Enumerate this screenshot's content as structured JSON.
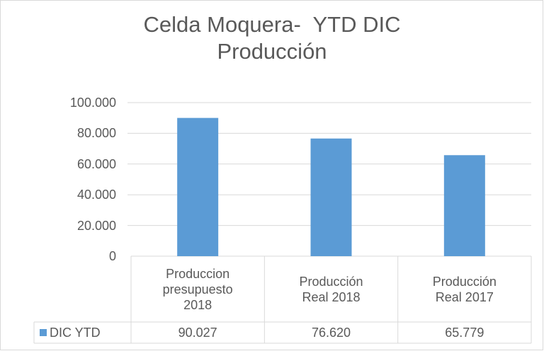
{
  "chart_data": {
    "type": "bar",
    "title": "Celda Moquera-  YTD DIC Producción",
    "categories": [
      "Produccion presupuesto 2018",
      "Producción Real 2018",
      "Producción Real 2017"
    ],
    "series": [
      {
        "name": "DIC YTD",
        "color": "#5b9bd5",
        "values": [
          90027,
          76620,
          65779
        ],
        "value_labels": [
          "90.027",
          "76.620",
          "65.779"
        ]
      }
    ],
    "ylim": [
      0,
      100000
    ],
    "yticks": [
      0,
      {
        "value": 20000,
        "label": "20.000"
      },
      {
        "value": 40000,
        "label": "40.000"
      },
      {
        "value": 60000,
        "label": "60.000"
      },
      {
        "value": 80000,
        "label": "80.000"
      },
      {
        "value": 100000,
        "label": "100.000"
      }
    ],
    "grid": true
  }
}
